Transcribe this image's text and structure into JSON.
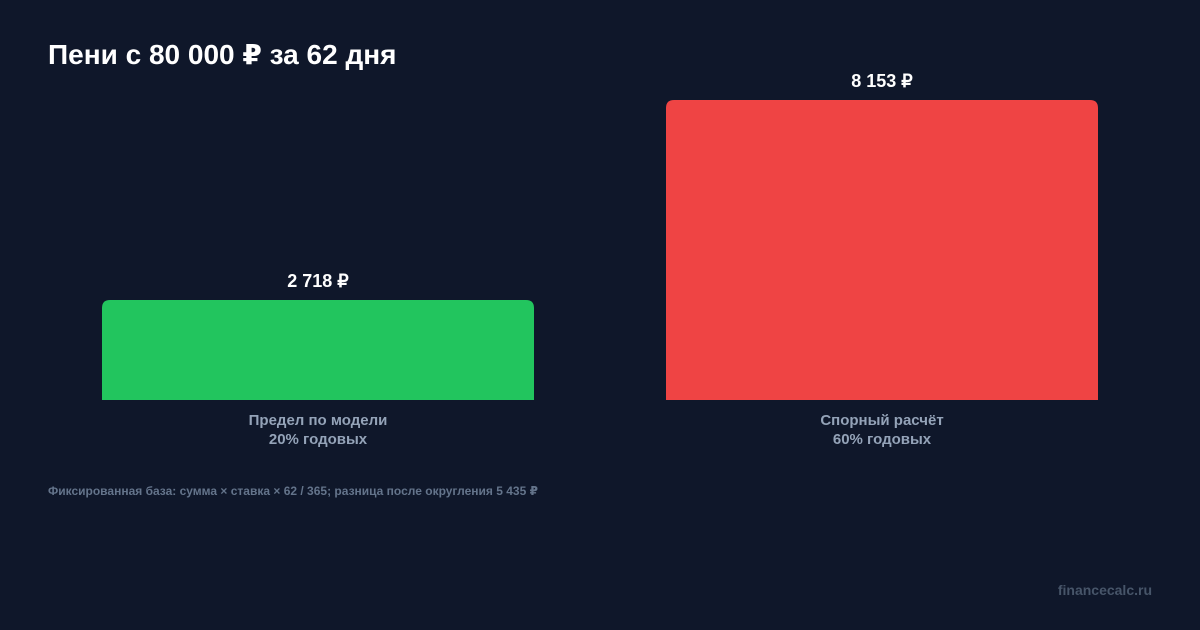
{
  "title": "Пени с 80 000 ₽ за 62 дня",
  "footnote": "Фиксированная база: сумма × ставка × 62 / 365; разница после округления 5 435 ₽",
  "brand": "financecalc.ru",
  "colors": {
    "background": "#0f172a",
    "bar_model": "#22c55e",
    "bar_disputed": "#ef4444",
    "value_label": "#ffffff",
    "category_label": "#94a3b8",
    "footnote": "#64748b"
  },
  "chart_data": {
    "type": "bar",
    "title": "Пени с 80 000 ₽ за 62 дня",
    "categories": [
      [
        "Предел по модели",
        "20% годовых"
      ],
      [
        "Спорный расчёт",
        "60% годовых"
      ]
    ],
    "values": [
      2718,
      8153
    ],
    "value_labels": [
      "2 718 ₽",
      "8 153 ₽"
    ],
    "bar_colors": [
      "#22c55e",
      "#ef4444"
    ],
    "ylim": [
      0,
      8153
    ],
    "grid": false,
    "legend": "none"
  }
}
